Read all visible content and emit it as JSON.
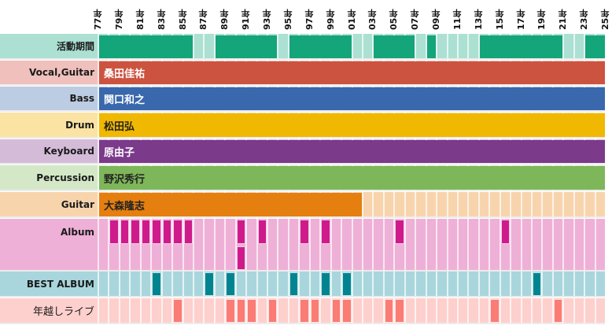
{
  "chart_data": {
    "type": "heatmap",
    "title": "",
    "x_ticks": [
      "77年",
      "79年",
      "81年",
      "83年",
      "85年",
      "87年",
      "89年",
      "91年",
      "93年",
      "95年",
      "97年",
      "99年",
      "01年",
      "03年",
      "05年",
      "07年",
      "09年",
      "11年",
      "13年",
      "15年",
      "17年",
      "19年",
      "21年",
      "23年",
      "25年"
    ],
    "years": [
      1977,
      1978,
      1979,
      1980,
      1981,
      1982,
      1983,
      1984,
      1985,
      1986,
      1987,
      1988,
      1989,
      1990,
      1991,
      1992,
      1993,
      1994,
      1995,
      1996,
      1997,
      1998,
      1999,
      2000,
      2001,
      2002,
      2003,
      2004,
      2005,
      2006,
      2007,
      2008,
      2009,
      2010,
      2011,
      2012,
      2013,
      2014,
      2015,
      2016,
      2017,
      2018,
      2019,
      2020,
      2021,
      2022,
      2023,
      2024
    ],
    "rows": [
      {
        "label": "活動期間",
        "bg": "#ace0d2",
        "active": "#14a57a",
        "type": "active",
        "ranges": [
          [
            1977,
            1985
          ],
          [
            1988,
            1993
          ],
          [
            1995,
            2000
          ],
          [
            2003,
            2006
          ],
          [
            2008,
            2008
          ],
          [
            2013,
            2020
          ],
          [
            2023,
            2024
          ]
        ]
      },
      {
        "label": "Vocal,Guitar",
        "bg": "#efc0bc",
        "color": "#cc5340",
        "type": "member",
        "name": "桑田佳祐",
        "text_color": "#ffffff",
        "range": [
          1977,
          2024
        ]
      },
      {
        "label": "Bass",
        "bg": "#bccce2",
        "color": "#3a68ad",
        "type": "member",
        "name": "関口和之",
        "text_color": "#ffffff",
        "range": [
          1977,
          2024
        ]
      },
      {
        "label": "Drum",
        "bg": "#fbe3a3",
        "color": "#f0b800",
        "type": "member",
        "name": "松田弘",
        "text_color": "#222222",
        "range": [
          1977,
          2024
        ]
      },
      {
        "label": "Keyboard",
        "bg": "#d4bcd9",
        "color": "#7b3a8a",
        "type": "member",
        "name": "原由子",
        "text_color": "#ffffff",
        "range": [
          1977,
          2024
        ]
      },
      {
        "label": "Percussion",
        "bg": "#d4e8c8",
        "color": "#7eb65a",
        "type": "member",
        "name": "野沢秀行",
        "text_color": "#222222",
        "range": [
          1977,
          2024
        ]
      },
      {
        "label": "Guitar",
        "bg": "#f8d4ad",
        "color": "#e57f10",
        "type": "member",
        "name": "大森隆志",
        "text_color": "#222222",
        "range": [
          1977,
          2001
        ]
      },
      {
        "label": "Album",
        "bg": "#eeb0d6",
        "color": "#cf1a8c",
        "type": "events",
        "levels": 2,
        "events": [
          1978,
          1979,
          1980,
          1981,
          1982,
          1983,
          1984,
          1985,
          1990,
          1990,
          1992,
          1996,
          1998,
          2005,
          2015
        ]
      },
      {
        "label": "BEST ALBUM",
        "bg": "#a9d6dc",
        "color": "#008590",
        "type": "events",
        "levels": 1,
        "events": [
          1982,
          1987,
          1989,
          1995,
          1998,
          2000,
          2018
        ]
      },
      {
        "label": "年越しライブ",
        "bg": "#fdd0cd",
        "color": "#fa7c74",
        "type": "events",
        "levels": 1,
        "events": [
          1984,
          1989,
          1990,
          1991,
          1993,
          1996,
          1997,
          1999,
          2000,
          2004,
          2005,
          2014,
          2020
        ]
      }
    ]
  }
}
